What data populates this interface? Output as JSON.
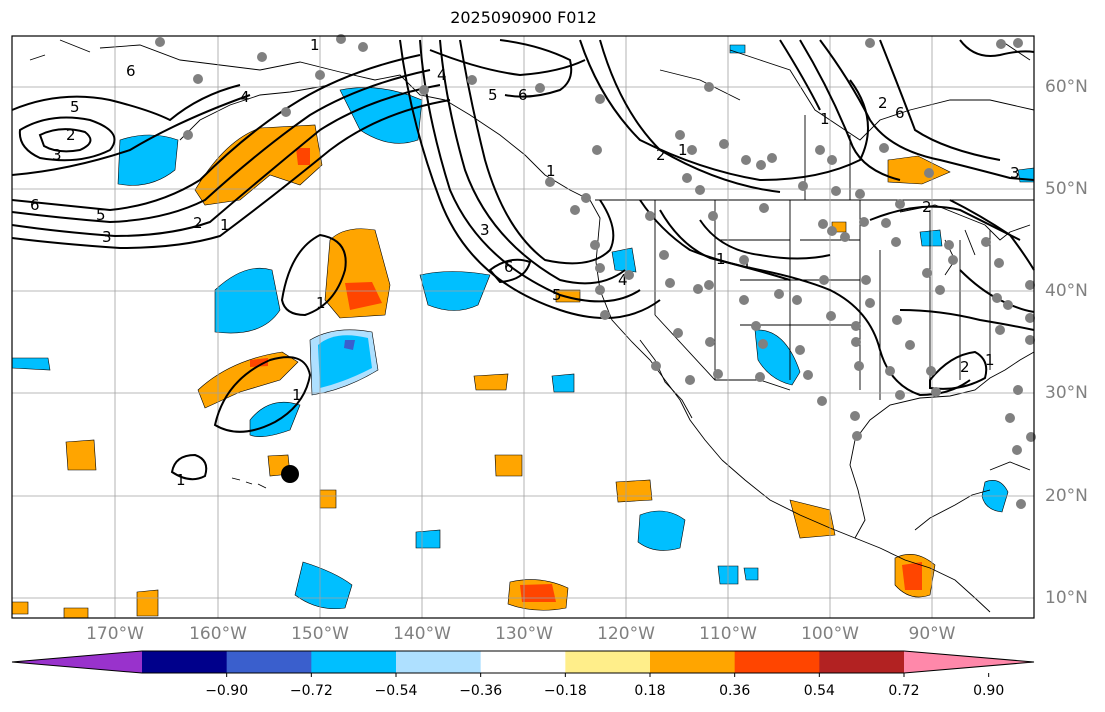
{
  "title": "2025090900 F012",
  "lat_labels": [
    "60°N",
    "50°N",
    "40°N",
    "30°N",
    "20°N",
    "10°N"
  ],
  "lon_labels": [
    "170°W",
    "160°W",
    "150°W",
    "140°W",
    "130°W",
    "120°W",
    "110°W",
    "100°W",
    "90°W"
  ],
  "colorbar": {
    "colors": [
      "#9932cc",
      "#00008b",
      "#3a5fcd",
      "#00bfff",
      "#aee0ff",
      "#ffffff",
      "#ffee8a",
      "#ffa500",
      "#ff4500",
      "#b22222",
      "#ff88aa"
    ],
    "tick_labels": [
      "−0.90",
      "−0.72",
      "−0.54",
      "−0.36",
      "−0.18",
      "0.18",
      "0.36",
      "0.54",
      "0.72",
      "0.90"
    ]
  },
  "contour_labels": [
    "6",
    "5",
    "2",
    "3",
    "6",
    "5",
    "3",
    "2",
    "1",
    "4",
    "1",
    "1",
    "1",
    "4",
    "5",
    "6",
    "2",
    "3",
    "6",
    "5",
    "4",
    "1",
    "2",
    "1",
    "1",
    "6",
    "3",
    "2",
    "1",
    "2",
    "1",
    "1",
    "1"
  ],
  "station_marker": "large black dot near 22°N 153°W"
}
